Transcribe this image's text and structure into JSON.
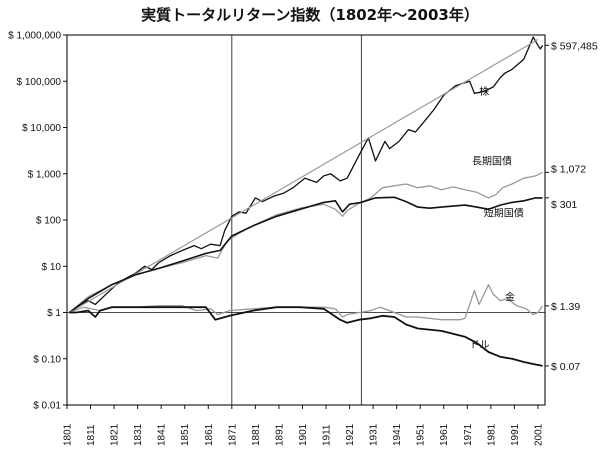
{
  "chart_data": {
    "type": "line",
    "title": "実質トータルリターン指数（1802年～2003年）",
    "y_scale": "log",
    "ylim": [
      0.01,
      1000000
    ],
    "xlim": [
      1801,
      2004
    ],
    "y_ticks": [
      {
        "value": 1000000,
        "label": "$ 1,000,000"
      },
      {
        "value": 100000,
        "label": "$ 100,000"
      },
      {
        "value": 10000,
        "label": "$ 10,000"
      },
      {
        "value": 1000,
        "label": "$ 1,000"
      },
      {
        "value": 100,
        "label": "$ 100"
      },
      {
        "value": 10,
        "label": "$ 10"
      },
      {
        "value": 1,
        "label": "$ 1"
      },
      {
        "value": 0.1,
        "label": "$ 0.10"
      },
      {
        "value": 0.01,
        "label": "$ 0.01"
      }
    ],
    "x_ticks": [
      "1801",
      "1811",
      "1821",
      "1831",
      "1841",
      "1851",
      "1861",
      "1871",
      "1881",
      "1891",
      "1901",
      "1911",
      "1921",
      "1931",
      "1941",
      "1951",
      "1961",
      "1971",
      "1981",
      "1991",
      "2001"
    ],
    "grid": {
      "vertical": [
        1871,
        1926
      ],
      "horizontal": [
        1
      ]
    },
    "series": [
      {
        "name": "株",
        "color": "#111111",
        "end_label": "$ 597,485",
        "points": [
          [
            1802,
            1
          ],
          [
            1806,
            1.4
          ],
          [
            1810,
            1.8
          ],
          [
            1813,
            1.5
          ],
          [
            1818,
            2.6
          ],
          [
            1822,
            4
          ],
          [
            1826,
            5.5
          ],
          [
            1830,
            7
          ],
          [
            1834,
            10
          ],
          [
            1837,
            8.5
          ],
          [
            1840,
            12
          ],
          [
            1845,
            17
          ],
          [
            1850,
            22
          ],
          [
            1855,
            28
          ],
          [
            1858,
            24
          ],
          [
            1862,
            30
          ],
          [
            1866,
            28
          ],
          [
            1868,
            60
          ],
          [
            1871,
            120
          ],
          [
            1874,
            150
          ],
          [
            1877,
            140
          ],
          [
            1881,
            300
          ],
          [
            1884,
            250
          ],
          [
            1889,
            330
          ],
          [
            1893,
            380
          ],
          [
            1897,
            500
          ],
          [
            1902,
            800
          ],
          [
            1907,
            650
          ],
          [
            1910,
            900
          ],
          [
            1913,
            1000
          ],
          [
            1917,
            700
          ],
          [
            1920,
            800
          ],
          [
            1925,
            2500
          ],
          [
            1929,
            6000
          ],
          [
            1932,
            1900
          ],
          [
            1936,
            5000
          ],
          [
            1938,
            3500
          ],
          [
            1942,
            5000
          ],
          [
            1946,
            9000
          ],
          [
            1949,
            8000
          ],
          [
            1953,
            14000
          ],
          [
            1957,
            25000
          ],
          [
            1961,
            50000
          ],
          [
            1966,
            80000
          ],
          [
            1969,
            90000
          ],
          [
            1972,
            100000
          ],
          [
            1974,
            55000
          ],
          [
            1978,
            60000
          ],
          [
            1982,
            75000
          ],
          [
            1985,
            120000
          ],
          [
            1987,
            150000
          ],
          [
            1990,
            180000
          ],
          [
            1995,
            300000
          ],
          [
            1999,
            900000
          ],
          [
            2001,
            600000
          ],
          [
            2002,
            500000
          ],
          [
            2003,
            597485
          ]
        ]
      },
      {
        "name": "株 trend",
        "color": "#999999",
        "points": [
          [
            1802,
            1
          ],
          [
            2001,
            800000
          ]
        ]
      },
      {
        "name": "長期国債",
        "color": "#999999",
        "end_label": "$ 1,072",
        "points": [
          [
            1802,
            1
          ],
          [
            1810,
            2.2
          ],
          [
            1820,
            4
          ],
          [
            1830,
            6.5
          ],
          [
            1840,
            9
          ],
          [
            1850,
            12
          ],
          [
            1860,
            17
          ],
          [
            1865,
            15
          ],
          [
            1869,
            35
          ],
          [
            1875,
            55
          ],
          [
            1880,
            75
          ],
          [
            1890,
            130
          ],
          [
            1900,
            180
          ],
          [
            1910,
            220
          ],
          [
            1915,
            170
          ],
          [
            1918,
            120
          ],
          [
            1920,
            160
          ],
          [
            1925,
            230
          ],
          [
            1930,
            300
          ],
          [
            1935,
            500
          ],
          [
            1940,
            550
          ],
          [
            1945,
            600
          ],
          [
            1950,
            500
          ],
          [
            1955,
            550
          ],
          [
            1960,
            450
          ],
          [
            1965,
            520
          ],
          [
            1970,
            450
          ],
          [
            1975,
            400
          ],
          [
            1980,
            300
          ],
          [
            1983,
            350
          ],
          [
            1986,
            500
          ],
          [
            1990,
            600
          ],
          [
            1995,
            800
          ],
          [
            2000,
            900
          ],
          [
            2003,
            1072
          ]
        ]
      },
      {
        "name": "短期国債",
        "color": "#111111",
        "end_label": "$ 301",
        "points": [
          [
            1802,
            1
          ],
          [
            1810,
            2
          ],
          [
            1820,
            4
          ],
          [
            1830,
            6.5
          ],
          [
            1840,
            9
          ],
          [
            1850,
            13
          ],
          [
            1860,
            19
          ],
          [
            1866,
            22
          ],
          [
            1871,
            45
          ],
          [
            1880,
            75
          ],
          [
            1890,
            120
          ],
          [
            1900,
            170
          ],
          [
            1910,
            240
          ],
          [
            1915,
            260
          ],
          [
            1918,
            150
          ],
          [
            1921,
            220
          ],
          [
            1926,
            240
          ],
          [
            1932,
            300
          ],
          [
            1940,
            310
          ],
          [
            1945,
            250
          ],
          [
            1950,
            190
          ],
          [
            1955,
            180
          ],
          [
            1960,
            190
          ],
          [
            1970,
            210
          ],
          [
            1975,
            190
          ],
          [
            1980,
            170
          ],
          [
            1985,
            210
          ],
          [
            1990,
            240
          ],
          [
            1995,
            260
          ],
          [
            2000,
            300
          ],
          [
            2003,
            301
          ]
        ]
      },
      {
        "name": "金",
        "color": "#999999",
        "end_label": "$ 1.39",
        "points": [
          [
            1802,
            1
          ],
          [
            1808,
            1.3
          ],
          [
            1815,
            1.1
          ],
          [
            1820,
            1.3
          ],
          [
            1830,
            1.3
          ],
          [
            1840,
            1.4
          ],
          [
            1850,
            1.4
          ],
          [
            1856,
            1.1
          ],
          [
            1862,
            1.2
          ],
          [
            1865,
            0.9
          ],
          [
            1870,
            1.1
          ],
          [
            1880,
            1.2
          ],
          [
            1890,
            1.3
          ],
          [
            1900,
            1.3
          ],
          [
            1910,
            1.3
          ],
          [
            1915,
            1.2
          ],
          [
            1918,
            0.8
          ],
          [
            1920,
            0.9
          ],
          [
            1925,
            1
          ],
          [
            1930,
            1.1
          ],
          [
            1934,
            1.3
          ],
          [
            1940,
            1
          ],
          [
            1945,
            0.8
          ],
          [
            1950,
            0.8
          ],
          [
            1960,
            0.7
          ],
          [
            1968,
            0.7
          ],
          [
            1970,
            0.75
          ],
          [
            1972,
            1.5
          ],
          [
            1974,
            3
          ],
          [
            1976,
            1.5
          ],
          [
            1980,
            4
          ],
          [
            1982,
            2.5
          ],
          [
            1985,
            1.8
          ],
          [
            1988,
            2
          ],
          [
            1992,
            1.4
          ],
          [
            1996,
            1.2
          ],
          [
            1999,
            0.9
          ],
          [
            2001,
            1
          ],
          [
            2003,
            1.39
          ]
        ]
      },
      {
        "name": "ドル",
        "color": "#111111",
        "end_label": "$ 0.07",
        "points": [
          [
            1802,
            1
          ],
          [
            1805,
            1
          ],
          [
            1810,
            1.1
          ],
          [
            1813,
            0.8
          ],
          [
            1815,
            1.1
          ],
          [
            1820,
            1.3
          ],
          [
            1830,
            1.3
          ],
          [
            1840,
            1.3
          ],
          [
            1850,
            1.3
          ],
          [
            1860,
            1.3
          ],
          [
            1864,
            0.7
          ],
          [
            1870,
            0.85
          ],
          [
            1880,
            1.1
          ],
          [
            1890,
            1.3
          ],
          [
            1900,
            1.3
          ],
          [
            1910,
            1.2
          ],
          [
            1917,
            0.7
          ],
          [
            1920,
            0.6
          ],
          [
            1925,
            0.7
          ],
          [
            1930,
            0.75
          ],
          [
            1935,
            0.85
          ],
          [
            1940,
            0.8
          ],
          [
            1945,
            0.55
          ],
          [
            1950,
            0.45
          ],
          [
            1960,
            0.4
          ],
          [
            1970,
            0.3
          ],
          [
            1975,
            0.22
          ],
          [
            1980,
            0.14
          ],
          [
            1985,
            0.11
          ],
          [
            1990,
            0.1
          ],
          [
            1995,
            0.085
          ],
          [
            2000,
            0.075
          ],
          [
            2003,
            0.07
          ]
        ]
      }
    ],
    "annotations": [
      {
        "text": "株",
        "x": 1976,
        "y": 50000
      },
      {
        "text": "長期国債",
        "x": 1973,
        "y": 1600
      },
      {
        "text": "短期国債",
        "x": 1978,
        "y": 120
      },
      {
        "text": "金",
        "x": 1987,
        "y": 1.8
      },
      {
        "text": "ドル",
        "x": 1972,
        "y": 0.17
      }
    ]
  }
}
